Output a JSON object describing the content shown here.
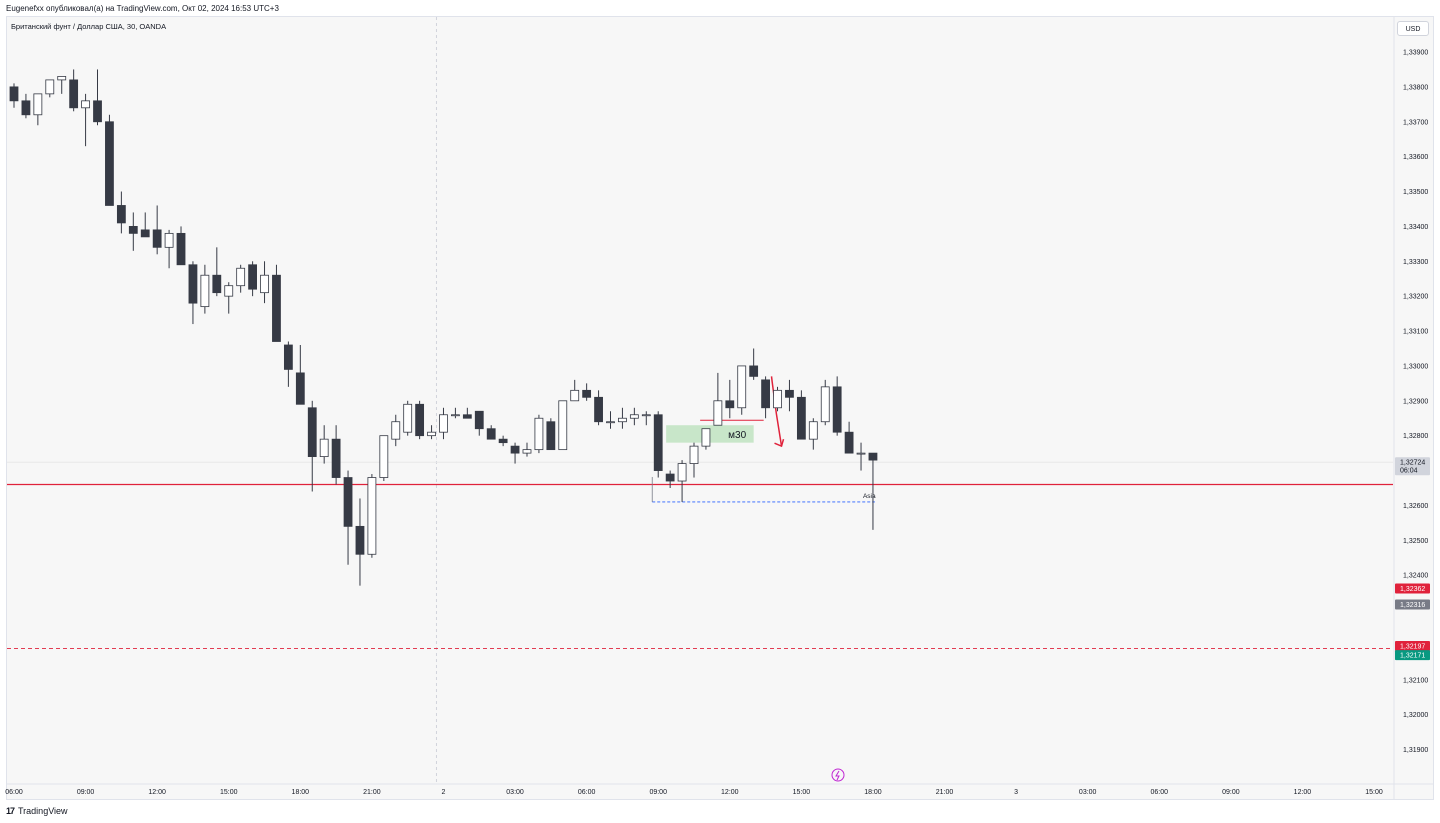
{
  "header": {
    "publish_line": "Eugenefxx опубликовал(а) на TradingView.com, Окт 02, 2024 16:53 UTC+3",
    "symbol_legend": "Британский фунт / Доллар США, 30, OANDA",
    "currency_button": "USD"
  },
  "footer": {
    "brand_logo": "17",
    "brand_name": "TradingView"
  },
  "colors": {
    "bull_body": "#ffffff",
    "bear_body": "#363a45",
    "wick": "#363a45",
    "red_line": "#e0223b",
    "green_zone": "#c8e6c9",
    "blue_dash": "#2962ff",
    "bg": "#f7f7f7"
  },
  "chart_data": {
    "type": "candlestick",
    "title": "Британский фунт / Доллар США, 30, OANDA",
    "ylim": [
      1.3183,
      1.3403
    ],
    "y_ticks": [
      "1,33900",
      "1,33800",
      "1,33700",
      "1,33600",
      "1,33500",
      "1,33400",
      "1,33300",
      "1,33200",
      "1,33100",
      "1,33000",
      "1,32900",
      "1,32800",
      "1,32600",
      "1,32500",
      "1,32400",
      "1,32100",
      "1,32000",
      "1,31900"
    ],
    "y_tick_values": [
      1.339,
      1.338,
      1.337,
      1.336,
      1.335,
      1.334,
      1.333,
      1.332,
      1.331,
      1.33,
      1.329,
      1.328,
      1.326,
      1.325,
      1.324,
      1.321,
      1.32,
      1.319
    ],
    "x_ticks": [
      "06:00",
      "09:00",
      "12:00",
      "15:00",
      "18:00",
      "21:00",
      "2",
      "03:00",
      "06:00",
      "09:00",
      "12:00",
      "15:00",
      "18:00",
      "21:00",
      "3",
      "03:00",
      "06:00",
      "09:00",
      "12:00",
      "15:00"
    ],
    "x_tick_slots": [
      0,
      6,
      12,
      18,
      24,
      30,
      36,
      42,
      48,
      54,
      60,
      66,
      72,
      78,
      84,
      90,
      96,
      102,
      108,
      114
    ],
    "candles": [
      {
        "o": 1.338,
        "h": 1.3381,
        "l": 1.3374,
        "c": 1.3376
      },
      {
        "o": 1.3376,
        "h": 1.3378,
        "l": 1.3371,
        "c": 1.3372
      },
      {
        "o": 1.3372,
        "h": 1.3378,
        "l": 1.3369,
        "c": 1.3378
      },
      {
        "o": 1.3378,
        "h": 1.3382,
        "l": 1.3377,
        "c": 1.3382
      },
      {
        "o": 1.3382,
        "h": 1.3383,
        "l": 1.3378,
        "c": 1.3383
      },
      {
        "o": 1.3382,
        "h": 1.3385,
        "l": 1.3373,
        "c": 1.3374
      },
      {
        "o": 1.3374,
        "h": 1.3378,
        "l": 1.3363,
        "c": 1.3376
      },
      {
        "o": 1.3376,
        "h": 1.3385,
        "l": 1.3369,
        "c": 1.337
      },
      {
        "o": 1.337,
        "h": 1.3372,
        "l": 1.3346,
        "c": 1.3346
      },
      {
        "o": 1.3346,
        "h": 1.335,
        "l": 1.3338,
        "c": 1.3341
      },
      {
        "o": 1.334,
        "h": 1.3344,
        "l": 1.3333,
        "c": 1.3338
      },
      {
        "o": 1.3339,
        "h": 1.3344,
        "l": 1.3337,
        "c": 1.3337
      },
      {
        "o": 1.3339,
        "h": 1.3346,
        "l": 1.3332,
        "c": 1.3334
      },
      {
        "o": 1.3334,
        "h": 1.3339,
        "l": 1.3328,
        "c": 1.3338
      },
      {
        "o": 1.3338,
        "h": 1.334,
        "l": 1.3329,
        "c": 1.3329
      },
      {
        "o": 1.3329,
        "h": 1.333,
        "l": 1.3312,
        "c": 1.3318
      },
      {
        "o": 1.3317,
        "h": 1.3329,
        "l": 1.3315,
        "c": 1.3326
      },
      {
        "o": 1.3326,
        "h": 1.3334,
        "l": 1.332,
        "c": 1.3321
      },
      {
        "o": 1.332,
        "h": 1.3324,
        "l": 1.3315,
        "c": 1.3323
      },
      {
        "o": 1.3323,
        "h": 1.3329,
        "l": 1.3321,
        "c": 1.3328
      },
      {
        "o": 1.3329,
        "h": 1.333,
        "l": 1.332,
        "c": 1.3322
      },
      {
        "o": 1.3321,
        "h": 1.333,
        "l": 1.3318,
        "c": 1.3326
      },
      {
        "o": 1.3326,
        "h": 1.3329,
        "l": 1.3307,
        "c": 1.3307
      },
      {
        "o": 1.3306,
        "h": 1.3307,
        "l": 1.3294,
        "c": 1.3299
      },
      {
        "o": 1.3298,
        "h": 1.3306,
        "l": 1.3289,
        "c": 1.3289
      },
      {
        "o": 1.3288,
        "h": 1.329,
        "l": 1.3264,
        "c": 1.3274
      },
      {
        "o": 1.3274,
        "h": 1.3283,
        "l": 1.3272,
        "c": 1.3279
      },
      {
        "o": 1.3279,
        "h": 1.3283,
        "l": 1.3266,
        "c": 1.3268
      },
      {
        "o": 1.3268,
        "h": 1.327,
        "l": 1.3243,
        "c": 1.3254
      },
      {
        "o": 1.3254,
        "h": 1.3262,
        "l": 1.3237,
        "c": 1.3246
      },
      {
        "o": 1.3246,
        "h": 1.3269,
        "l": 1.3245,
        "c": 1.3268
      },
      {
        "o": 1.3268,
        "h": 1.328,
        "l": 1.3267,
        "c": 1.328
      },
      {
        "o": 1.3279,
        "h": 1.3286,
        "l": 1.3277,
        "c": 1.3284
      },
      {
        "o": 1.3281,
        "h": 1.329,
        "l": 1.328,
        "c": 1.3289
      },
      {
        "o": 1.3289,
        "h": 1.329,
        "l": 1.3279,
        "c": 1.328
      },
      {
        "o": 1.328,
        "h": 1.3283,
        "l": 1.3279,
        "c": 1.3281
      },
      {
        "o": 1.3281,
        "h": 1.3288,
        "l": 1.3279,
        "c": 1.3286
      },
      {
        "o": 1.3286,
        "h": 1.3288,
        "l": 1.3285,
        "c": 1.3286
      },
      {
        "o": 1.3286,
        "h": 1.3288,
        "l": 1.3285,
        "c": 1.3285
      },
      {
        "o": 1.3287,
        "h": 1.3287,
        "l": 1.328,
        "c": 1.3282
      },
      {
        "o": 1.3282,
        "h": 1.3283,
        "l": 1.3279,
        "c": 1.3279
      },
      {
        "o": 1.3279,
        "h": 1.328,
        "l": 1.3277,
        "c": 1.3278
      },
      {
        "o": 1.3277,
        "h": 1.3278,
        "l": 1.3272,
        "c": 1.3275
      },
      {
        "o": 1.3275,
        "h": 1.3278,
        "l": 1.3274,
        "c": 1.3276
      },
      {
        "o": 1.3276,
        "h": 1.3286,
        "l": 1.3275,
        "c": 1.3285
      },
      {
        "o": 1.3284,
        "h": 1.3285,
        "l": 1.3276,
        "c": 1.3276
      },
      {
        "o": 1.3276,
        "h": 1.329,
        "l": 1.3276,
        "c": 1.329
      },
      {
        "o": 1.329,
        "h": 1.3296,
        "l": 1.329,
        "c": 1.3293
      },
      {
        "o": 1.3293,
        "h": 1.3295,
        "l": 1.329,
        "c": 1.3291
      },
      {
        "o": 1.3291,
        "h": 1.3293,
        "l": 1.3283,
        "c": 1.3284
      },
      {
        "o": 1.3284,
        "h": 1.3287,
        "l": 1.3282,
        "c": 1.3284
      },
      {
        "o": 1.3284,
        "h": 1.3288,
        "l": 1.3282,
        "c": 1.3285
      },
      {
        "o": 1.3285,
        "h": 1.3288,
        "l": 1.3283,
        "c": 1.3286
      },
      {
        "o": 1.3286,
        "h": 1.3287,
        "l": 1.3283,
        "c": 1.3286
      },
      {
        "o": 1.3286,
        "h": 1.3287,
        "l": 1.3268,
        "c": 1.327
      },
      {
        "o": 1.3269,
        "h": 1.327,
        "l": 1.3265,
        "c": 1.3267
      },
      {
        "o": 1.3267,
        "h": 1.3273,
        "l": 1.3261,
        "c": 1.3272
      },
      {
        "o": 1.3272,
        "h": 1.3278,
        "l": 1.3268,
        "c": 1.3277
      },
      {
        "o": 1.3277,
        "h": 1.3282,
        "l": 1.3276,
        "c": 1.3282
      },
      {
        "o": 1.3283,
        "h": 1.3298,
        "l": 1.3283,
        "c": 1.329
      },
      {
        "o": 1.329,
        "h": 1.3296,
        "l": 1.3285,
        "c": 1.3288
      },
      {
        "o": 1.3288,
        "h": 1.33,
        "l": 1.3286,
        "c": 1.33
      },
      {
        "o": 1.33,
        "h": 1.3305,
        "l": 1.3296,
        "c": 1.3297
      },
      {
        "o": 1.3296,
        "h": 1.3297,
        "l": 1.3285,
        "c": 1.3288
      },
      {
        "o": 1.3288,
        "h": 1.3294,
        "l": 1.3287,
        "c": 1.3293
      },
      {
        "o": 1.3293,
        "h": 1.3296,
        "l": 1.3287,
        "c": 1.3291
      },
      {
        "o": 1.3291,
        "h": 1.3293,
        "l": 1.3279,
        "c": 1.3279
      },
      {
        "o": 1.3279,
        "h": 1.3285,
        "l": 1.3276,
        "c": 1.3284
      },
      {
        "o": 1.3284,
        "h": 1.3296,
        "l": 1.3283,
        "c": 1.3294
      },
      {
        "o": 1.3294,
        "h": 1.3297,
        "l": 1.328,
        "c": 1.3281
      },
      {
        "o": 1.3281,
        "h": 1.3284,
        "l": 1.3275,
        "c": 1.3275
      },
      {
        "o": 1.3275,
        "h": 1.3278,
        "l": 1.327,
        "c": 1.3275
      },
      {
        "o": 1.3275,
        "h": 1.3275,
        "l": 1.3253,
        "c": 1.3273
      }
    ],
    "horizontal_lines": [
      {
        "price": 1.3266,
        "style": "solid",
        "color": "red"
      },
      {
        "price": 1.3219,
        "style": "dashed",
        "color": "red"
      }
    ],
    "annotations": [
      {
        "type": "zone",
        "label": "м30",
        "from_slot": 55,
        "to_slot": 62,
        "top": 1.3283,
        "bottom": 1.3278
      },
      {
        "type": "line",
        "label": "Asia",
        "from_slot": 54,
        "to_slot": 72,
        "price": 1.3261,
        "style": "dashed"
      },
      {
        "type": "arrow",
        "direction": "down",
        "slot": 64
      }
    ],
    "price_labels": [
      {
        "text": "1,32724",
        "sub": "06:04",
        "price": 1.32724,
        "bg": "#d1d4dc",
        "fg": "#131722"
      },
      {
        "text": "1,32362",
        "price": 1.32362,
        "bg": "#e0223b",
        "fg": "#ffffff"
      },
      {
        "text": "1,32316",
        "price": 1.32316,
        "bg": "#787b86",
        "fg": "#ffffff"
      },
      {
        "text": "1,32197",
        "price": 1.32197,
        "bg": "#e0223b",
        "fg": "#ffffff"
      },
      {
        "text": "1,32171",
        "price": 1.32171,
        "bg": "#089981",
        "fg": "#ffffff"
      }
    ]
  }
}
